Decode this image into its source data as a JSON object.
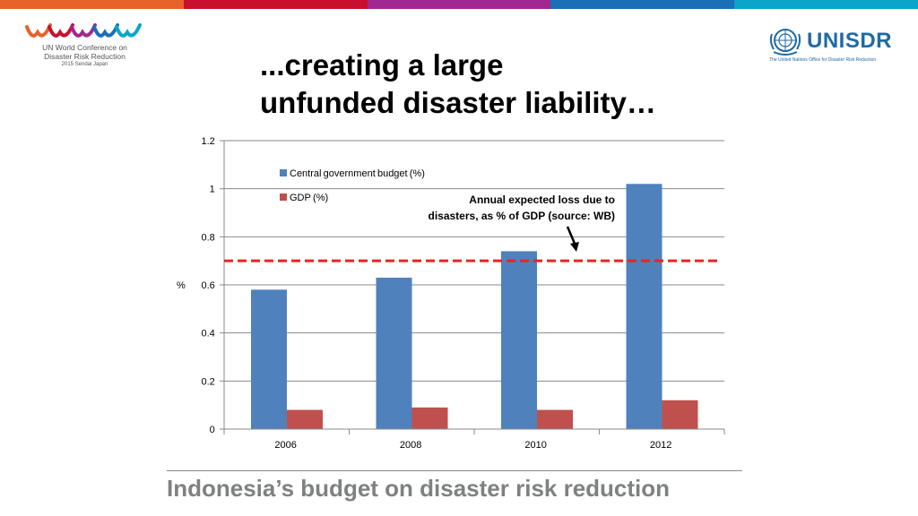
{
  "top_bar_colors": [
    "#e8632b",
    "#c8102e",
    "#a0288f",
    "#1a6fb5",
    "#0aa5c8"
  ],
  "logo_left": {
    "line1": "UN World Conference on",
    "line2": "Disaster Risk Reduction",
    "line3": "2015 Sendai Japan",
    "wave_colors": [
      "#e8632b",
      "#c8102e",
      "#a0288f",
      "#1a6fb5",
      "#0aa5c8"
    ]
  },
  "logo_right": {
    "name": "UNISDR",
    "subtitle": "The United Nations Office for Disaster Risk Reduction",
    "emblem_icon": "un-emblem-icon",
    "color": "#1f6aa5"
  },
  "title": {
    "line1": "...creating a large",
    "line2": "unfunded disaster liability…"
  },
  "chart_data": {
    "type": "bar",
    "categories": [
      "2006 ",
      "2008 ",
      "2010 ",
      "2012 "
    ],
    "category_labels": [
      "2006 ",
      "2008 ",
      "2010 ",
      "2012 "
    ],
    "series": [
      {
        "name": "Central government budget (%) ",
        "values": [
          0.58,
          0.63,
          0.74,
          1.02
        ],
        "color": "#4f81bd"
      },
      {
        "name": "GDP (%) ",
        "values": [
          0.08,
          0.09,
          0.08,
          0.12
        ],
        "color": "#c0504d"
      }
    ],
    "ylim": [
      0,
      1.2
    ],
    "yticks": [
      0,
      0.2,
      0.4,
      0.6,
      0.8,
      1,
      1.2
    ],
    "ytick_labels": [
      "0 ",
      "0.2 ",
      "0.4 ",
      "0.6 ",
      "0.8 ",
      "1 ",
      "1.2 "
    ],
    "ylabel": "% ",
    "xlabel": "",
    "grid": true,
    "legend_position": "top-left",
    "reference_line": {
      "value": 0.7,
      "color": "#e8251f",
      "style": "dashed"
    },
    "annotation": {
      "line1": "Annual expected loss due to",
      "line2": "disasters, as % of GDP (source: WB)"
    }
  },
  "footer": {
    "text": "Indonesia’s budget on disaster risk reduction"
  }
}
